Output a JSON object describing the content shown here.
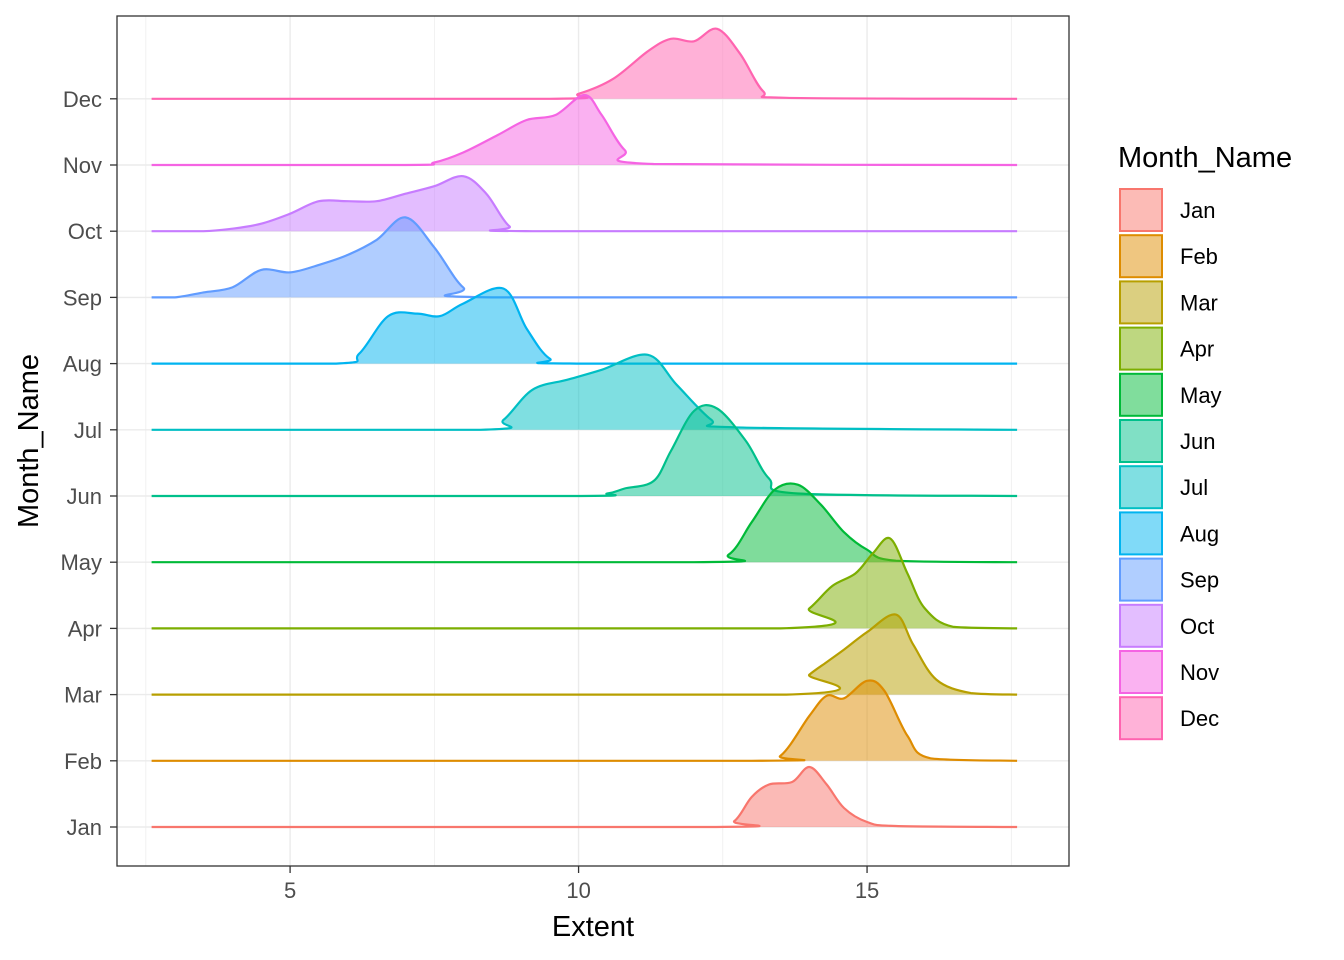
{
  "chart_data": {
    "type": "ridgeline",
    "xlabel": "Extent",
    "ylabel": "Month_Name",
    "xlim": [
      2.0,
      18.5
    ],
    "x_ticks": [
      5,
      10,
      15
    ],
    "x_tick_labels": [
      "5",
      "10",
      "15"
    ],
    "x_range": [
      2.6,
      17.6
    ],
    "grid": true,
    "legend": {
      "title": "Month_Name",
      "position": "right"
    },
    "categories": [
      "Jan",
      "Feb",
      "Mar",
      "Apr",
      "May",
      "Jun",
      "Jul",
      "Aug",
      "Sep",
      "Oct",
      "Nov",
      "Dec"
    ],
    "series": [
      {
        "name": "Jan",
        "color": "#F8766D",
        "density": [
          [
            2.6,
            0
          ],
          [
            12.3,
            0
          ],
          [
            12.7,
            0.12
          ],
          [
            13.0,
            0.6
          ],
          [
            13.3,
            0.85
          ],
          [
            13.7,
            0.9
          ],
          [
            14.0,
            1.2
          ],
          [
            14.3,
            0.85
          ],
          [
            14.6,
            0.38
          ],
          [
            15.0,
            0.1
          ],
          [
            15.5,
            0.02
          ],
          [
            17.6,
            0
          ]
        ]
      },
      {
        "name": "Feb",
        "color": "#DE8C00",
        "density": [
          [
            2.6,
            0
          ],
          [
            13.0,
            0
          ],
          [
            13.5,
            0.1
          ],
          [
            14.0,
            0.9
          ],
          [
            14.3,
            1.3
          ],
          [
            14.6,
            1.25
          ],
          [
            15.0,
            1.6
          ],
          [
            15.3,
            1.4
          ],
          [
            15.7,
            0.5
          ],
          [
            16.1,
            0.05
          ],
          [
            17.6,
            0
          ]
        ]
      },
      {
        "name": "Mar",
        "color": "#B79F00",
        "density": [
          [
            2.6,
            0
          ],
          [
            13.6,
            0
          ],
          [
            14.0,
            0.4
          ],
          [
            14.3,
            0.65
          ],
          [
            14.6,
            0.9
          ],
          [
            15.0,
            1.25
          ],
          [
            15.5,
            1.6
          ],
          [
            15.8,
            1.0
          ],
          [
            16.2,
            0.3
          ],
          [
            16.8,
            0.03
          ],
          [
            17.6,
            0
          ]
        ]
      },
      {
        "name": "Apr",
        "color": "#7CAE00",
        "density": [
          [
            2.6,
            0
          ],
          [
            13.5,
            0
          ],
          [
            14.0,
            0.4
          ],
          [
            14.4,
            0.85
          ],
          [
            14.8,
            1.1
          ],
          [
            15.1,
            1.5
          ],
          [
            15.4,
            1.8
          ],
          [
            15.7,
            1.1
          ],
          [
            16.0,
            0.4
          ],
          [
            16.5,
            0.03
          ],
          [
            17.6,
            0
          ]
        ]
      },
      {
        "name": "May",
        "color": "#00BA38",
        "density": [
          [
            2.6,
            0
          ],
          [
            12.0,
            0
          ],
          [
            12.6,
            0.15
          ],
          [
            13.0,
            0.8
          ],
          [
            13.4,
            1.45
          ],
          [
            13.8,
            1.55
          ],
          [
            14.2,
            1.15
          ],
          [
            14.6,
            0.6
          ],
          [
            15.0,
            0.25
          ],
          [
            15.5,
            0.03
          ],
          [
            17.6,
            0
          ]
        ]
      },
      {
        "name": "Jun",
        "color": "#00C08B",
        "density": [
          [
            2.6,
            0
          ],
          [
            9.9,
            0
          ],
          [
            10.5,
            0.05
          ],
          [
            10.8,
            0.15
          ],
          [
            11.3,
            0.3
          ],
          [
            11.6,
            0.9
          ],
          [
            12.0,
            1.7
          ],
          [
            12.4,
            1.75
          ],
          [
            12.9,
            1.1
          ],
          [
            13.3,
            0.35
          ],
          [
            13.8,
            0.05
          ],
          [
            17.6,
            0
          ]
        ]
      },
      {
        "name": "Jul",
        "color": "#00BFC4",
        "density": [
          [
            2.6,
            0
          ],
          [
            8.3,
            0
          ],
          [
            8.7,
            0.2
          ],
          [
            9.2,
            0.8
          ],
          [
            9.8,
            1.0
          ],
          [
            10.4,
            1.2
          ],
          [
            11.2,
            1.5
          ],
          [
            11.7,
            0.9
          ],
          [
            12.3,
            0.2
          ],
          [
            12.7,
            0.05
          ],
          [
            17.6,
            0
          ]
        ]
      },
      {
        "name": "Aug",
        "color": "#00B4F0",
        "density": [
          [
            2.6,
            0
          ],
          [
            5.8,
            0
          ],
          [
            6.2,
            0.2
          ],
          [
            6.7,
            0.95
          ],
          [
            7.2,
            1.0
          ],
          [
            7.6,
            0.95
          ],
          [
            8.0,
            1.2
          ],
          [
            8.7,
            1.5
          ],
          [
            9.1,
            0.7
          ],
          [
            9.5,
            0.1
          ],
          [
            10.0,
            0
          ],
          [
            17.6,
            0
          ]
        ]
      },
      {
        "name": "Sep",
        "color": "#619CFF",
        "density": [
          [
            2.6,
            0
          ],
          [
            3.0,
            0
          ],
          [
            3.5,
            0.1
          ],
          [
            4.0,
            0.2
          ],
          [
            4.5,
            0.55
          ],
          [
            5.0,
            0.5
          ],
          [
            5.5,
            0.65
          ],
          [
            6.0,
            0.85
          ],
          [
            6.5,
            1.15
          ],
          [
            7.0,
            1.6
          ],
          [
            7.5,
            1.0
          ],
          [
            8.0,
            0.2
          ],
          [
            8.5,
            0
          ],
          [
            17.6,
            0
          ]
        ]
      },
      {
        "name": "Oct",
        "color": "#C77CFF",
        "density": [
          [
            2.6,
            0
          ],
          [
            3.5,
            0
          ],
          [
            4.0,
            0.05
          ],
          [
            4.5,
            0.15
          ],
          [
            5.0,
            0.35
          ],
          [
            5.5,
            0.6
          ],
          [
            6.0,
            0.6
          ],
          [
            6.5,
            0.6
          ],
          [
            7.0,
            0.75
          ],
          [
            7.5,
            0.9
          ],
          [
            8.0,
            1.1
          ],
          [
            8.4,
            0.75
          ],
          [
            8.8,
            0.1
          ],
          [
            9.2,
            0
          ],
          [
            17.6,
            0
          ]
        ]
      },
      {
        "name": "Nov",
        "color": "#F564E3",
        "density": [
          [
            2.6,
            0
          ],
          [
            7.0,
            0
          ],
          [
            7.5,
            0.05
          ],
          [
            8.0,
            0.25
          ],
          [
            8.6,
            0.6
          ],
          [
            9.1,
            0.9
          ],
          [
            9.6,
            1.0
          ],
          [
            10.1,
            1.4
          ],
          [
            10.4,
            1.0
          ],
          [
            10.8,
            0.3
          ],
          [
            11.3,
            0.02
          ],
          [
            17.6,
            0
          ]
        ]
      },
      {
        "name": "Dec",
        "color": "#FF64B0",
        "density": [
          [
            2.6,
            0
          ],
          [
            9.5,
            0
          ],
          [
            10.0,
            0.1
          ],
          [
            10.6,
            0.4
          ],
          [
            11.2,
            0.95
          ],
          [
            11.6,
            1.2
          ],
          [
            12.0,
            1.15
          ],
          [
            12.4,
            1.4
          ],
          [
            12.8,
            0.9
          ],
          [
            13.2,
            0.15
          ],
          [
            13.6,
            0.02
          ],
          [
            17.6,
            0
          ]
        ]
      }
    ]
  }
}
